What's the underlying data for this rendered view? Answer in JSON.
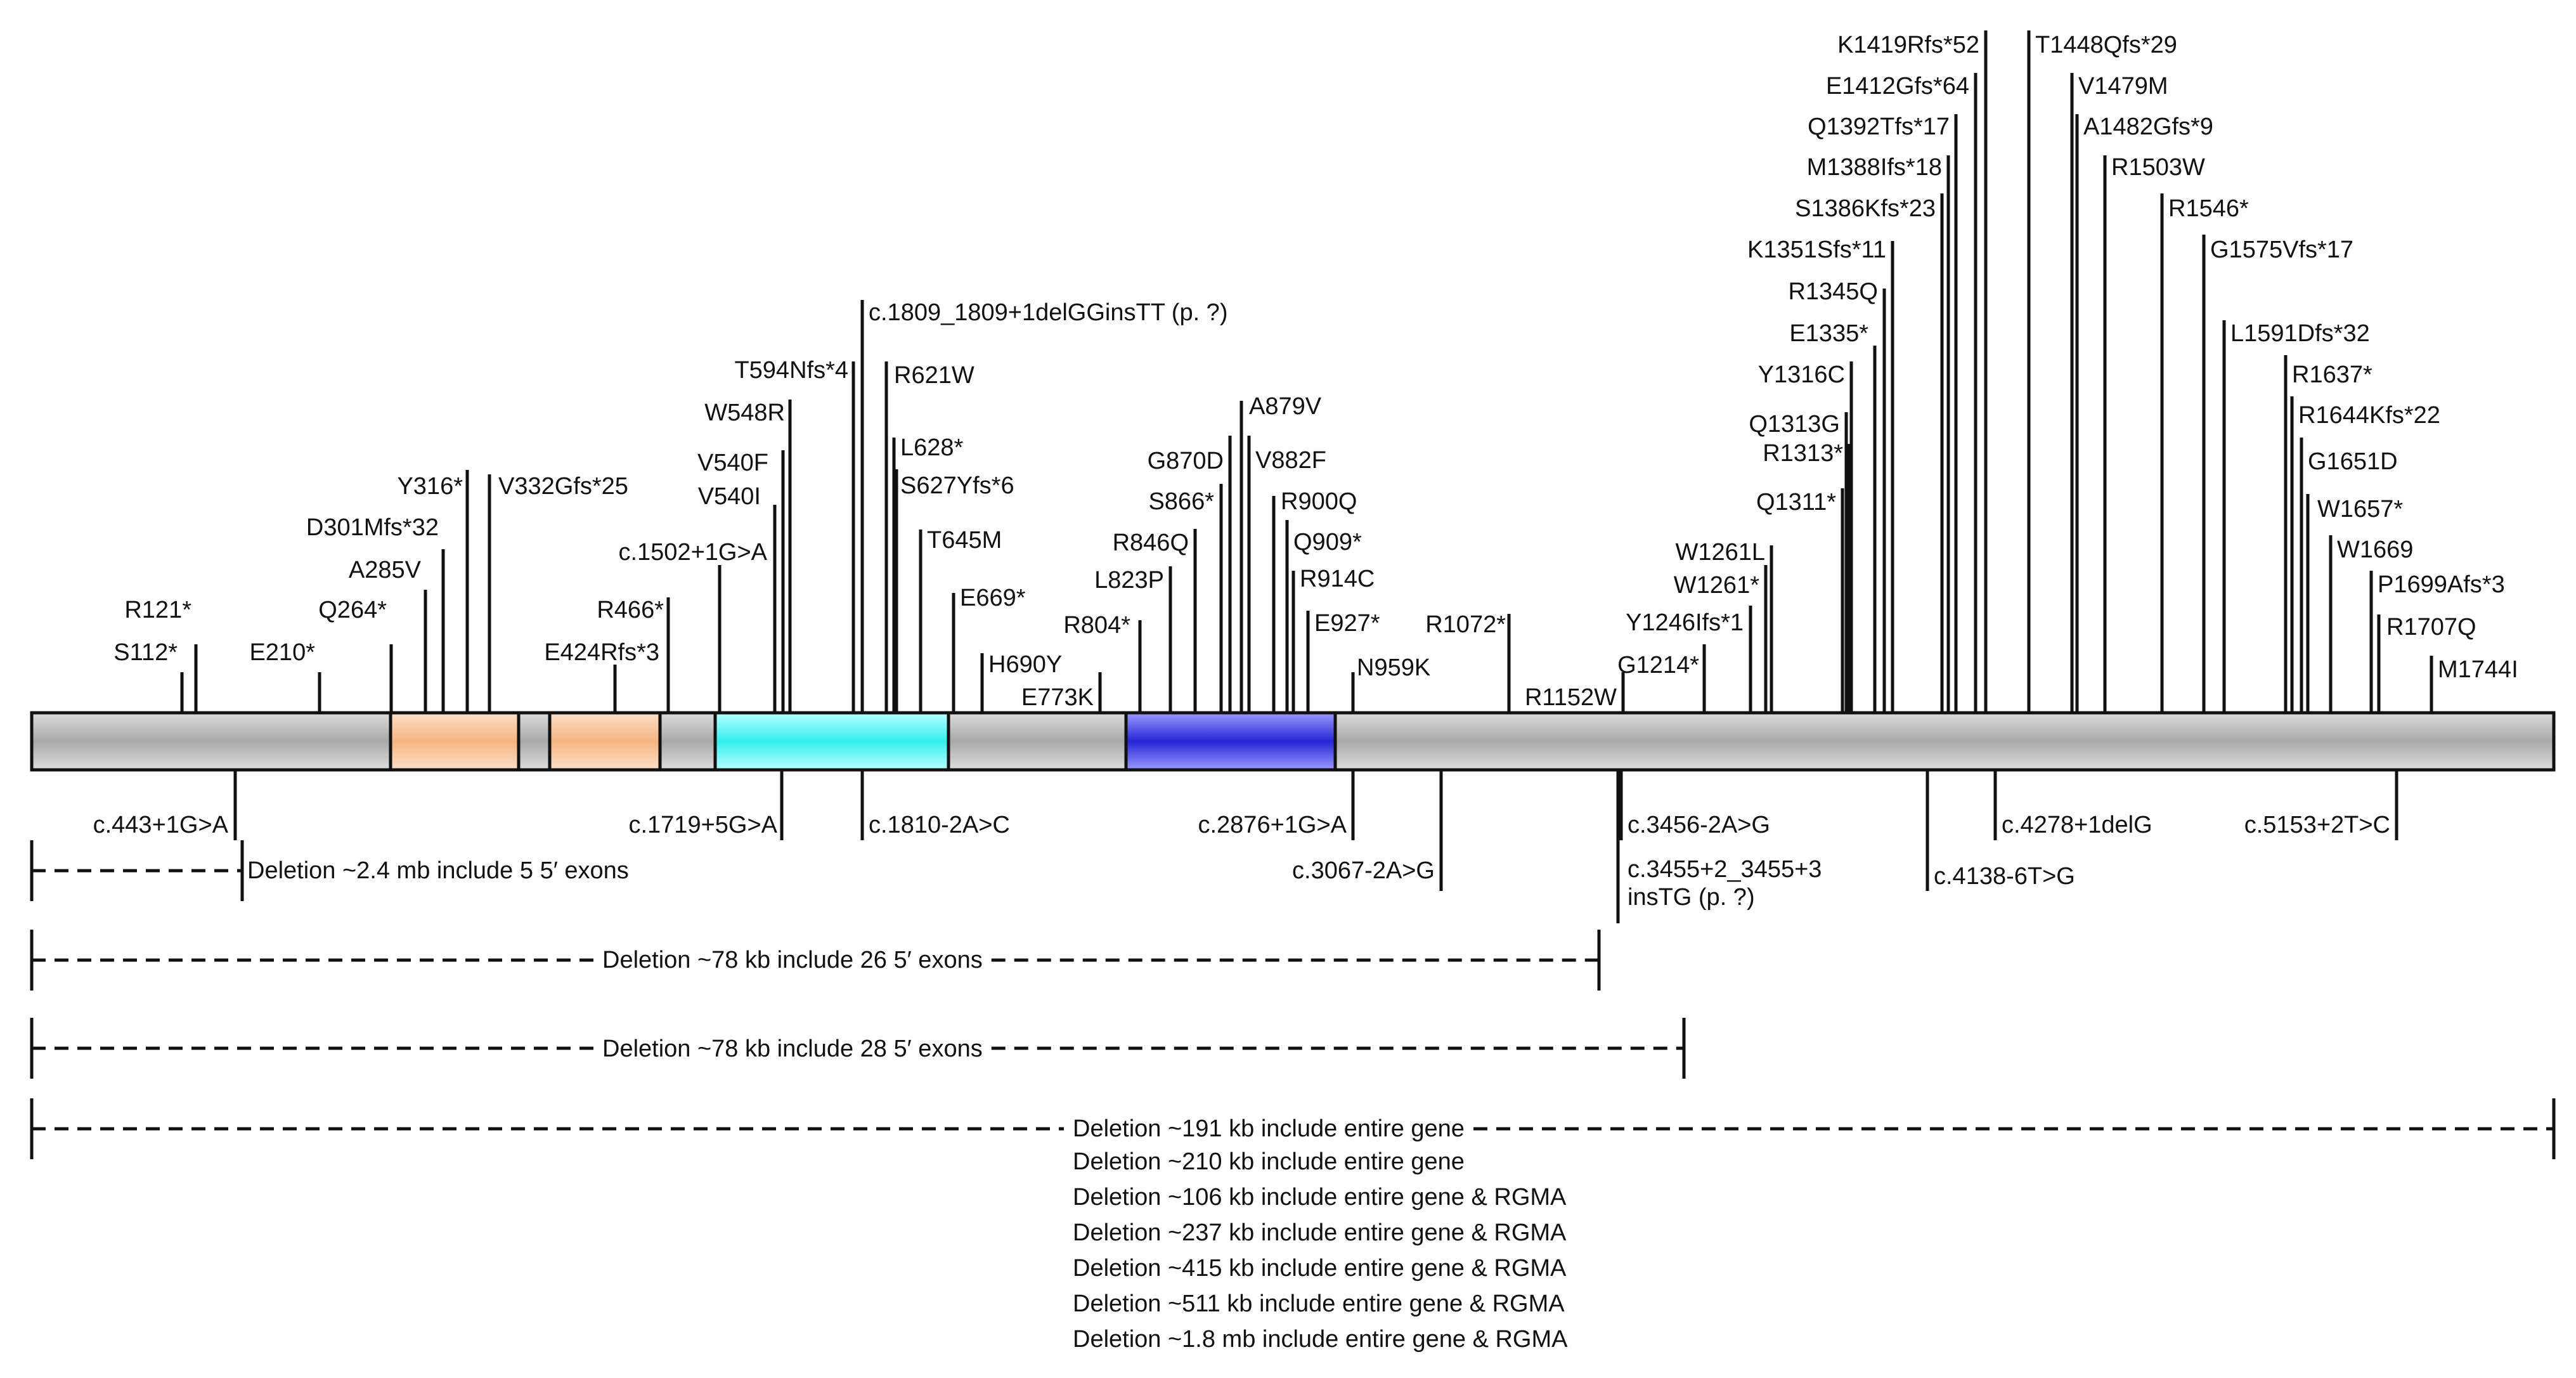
{
  "colors": {
    "text": "#111111",
    "highlight": "#ff1f1f",
    "bar_light": "#e6e6e6",
    "bar_mid": "#a9a9a9",
    "orange": "#f5b482",
    "cyan": "#33eeee",
    "blue": "#3333dd"
  },
  "domains": [
    {
      "name": "orange-domain-1",
      "color": "orange"
    },
    {
      "name": "orange-domain-2",
      "color": "orange"
    },
    {
      "name": "cyan-domain",
      "color": "cyan"
    },
    {
      "name": "blue-domain",
      "color": "blue"
    }
  ],
  "variants_above": [
    {
      "label": "R121*"
    },
    {
      "label": "S112*"
    },
    {
      "label": "E210*"
    },
    {
      "label": "Q264*"
    },
    {
      "label": "A285V"
    },
    {
      "label": "D301Mfs*32"
    },
    {
      "label": "Y316*"
    },
    {
      "label": "V332Gfs*25"
    },
    {
      "label": "R466*"
    },
    {
      "label": "E424Rfs*3"
    },
    {
      "label": "c.1502+1G>A"
    },
    {
      "label": "V540I"
    },
    {
      "label": "V540F"
    },
    {
      "label": "W548R"
    },
    {
      "label": "T594Nfs*4"
    },
    {
      "label": "c.1809_1809+1delGGinsTT (p. ?)",
      "highlight": true
    },
    {
      "label": "R621W"
    },
    {
      "label": "L628*"
    },
    {
      "label": "S627Yfs*6"
    },
    {
      "label": "T645M"
    },
    {
      "label": "E669*"
    },
    {
      "label": "H690Y"
    },
    {
      "label": "E773K"
    },
    {
      "label": "R804*"
    },
    {
      "label": "L823P"
    },
    {
      "label": "R846Q"
    },
    {
      "label": "S866*"
    },
    {
      "label": "G870D"
    },
    {
      "label": "A879V"
    },
    {
      "label": "V882F"
    },
    {
      "label": "R900Q"
    },
    {
      "label": "Q909*"
    },
    {
      "label": "R914C"
    },
    {
      "label": "E927*"
    },
    {
      "label": "N959K"
    },
    {
      "label": "R1072*"
    },
    {
      "label": "R1152W"
    },
    {
      "label": "G1214*"
    },
    {
      "label": "Y1246Ifs*1"
    },
    {
      "label": "W1261*",
      "highlight": true
    },
    {
      "label": "W1261L"
    },
    {
      "label": "Q1311*"
    },
    {
      "label": "R1313*"
    },
    {
      "label": "Q1313G"
    },
    {
      "label": "Y1316C"
    },
    {
      "label": "E1335*"
    },
    {
      "label": "R1345Q"
    },
    {
      "label": "K1351Sfs*11"
    },
    {
      "label": "S1386Kfs*23"
    },
    {
      "label": "M1388Ifs*18"
    },
    {
      "label": "Q1392Tfs*17"
    },
    {
      "label": "E1412Gfs*64"
    },
    {
      "label": "K1419Rfs*52"
    },
    {
      "label": "T1448Qfs*29"
    },
    {
      "label": "V1479M"
    },
    {
      "label": "A1482Gfs*9"
    },
    {
      "label": "R1503W"
    },
    {
      "label": "R1546*"
    },
    {
      "label": "G1575Vfs*17"
    },
    {
      "label": "L1591Dfs*32"
    },
    {
      "label": "R1637*"
    },
    {
      "label": "R1644Kfs*22"
    },
    {
      "label": "G1651D"
    },
    {
      "label": "W1657*"
    },
    {
      "label": "W1669"
    },
    {
      "label": "P1699Afs*3"
    },
    {
      "label": "R1707Q"
    },
    {
      "label": "M1744I"
    }
  ],
  "variants_below": [
    {
      "label": "c.443+1G>A"
    },
    {
      "label": "c.1719+5G>A"
    },
    {
      "label": "c.1810-2A>C"
    },
    {
      "label": "c.2876+1G>A"
    },
    {
      "label": "c.3067-2A>G"
    },
    {
      "label": "c.3456-2A>G"
    },
    {
      "label": "c.3455+2_3455+3",
      "label2": "insTG (p. ?)",
      "highlight": true
    },
    {
      "label": "c.4138-6T>G"
    },
    {
      "label": "c.4278+1delG"
    },
    {
      "label": "c.5153+2T>C"
    }
  ],
  "deletions": [
    {
      "label": "Deletion ~2.4 mb include 5 5′ exons"
    },
    {
      "label": "Deletion ~78 kb include 26 5′ exons"
    },
    {
      "label": "Deletion ~78 kb include 28 5′ exons"
    },
    {
      "label": "Deletion ~191 kb include entire gene"
    }
  ],
  "extra_deletions": [
    "Deletion ~210 kb include entire gene",
    "Deletion ~106 kb include entire gene & RGMA",
    "Deletion ~237 kb include entire gene & RGMA",
    "Deletion ~415 kb include entire gene & RGMA",
    "Deletion ~511 kb include entire gene & RGMA",
    "Deletion ~1.8 mb include entire gene & RGMA"
  ]
}
